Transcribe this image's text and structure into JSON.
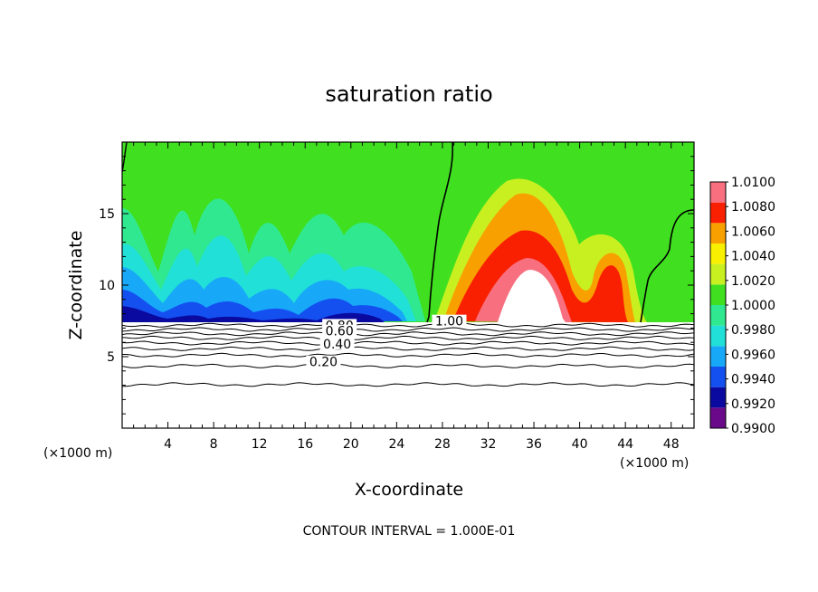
{
  "chart_data": {
    "type": "heatmap",
    "title": "saturation ratio",
    "xlabel": "X-coordinate",
    "ylabel": "Z-coordinate",
    "x_unit_left": "(×1000 m)",
    "x_unit_right": "(×1000 m)",
    "xlim": [
      0,
      50
    ],
    "ylim": [
      0,
      20
    ],
    "x_ticks": [
      "4",
      "8",
      "12",
      "16",
      "20",
      "24",
      "28",
      "32",
      "36",
      "40",
      "44",
      "48"
    ],
    "x_tick_values": [
      4,
      8,
      12,
      16,
      20,
      24,
      28,
      32,
      36,
      40,
      44,
      48
    ],
    "y_ticks": [
      "5",
      "10",
      "15"
    ],
    "y_tick_values": [
      5,
      10,
      15
    ],
    "footer": "CONTOUR INTERVAL = 1.000E-01",
    "colorbar": {
      "labels": [
        "1.0100",
        "1.0080",
        "1.0060",
        "1.0040",
        "1.0020",
        "1.0000",
        "0.9980",
        "0.9960",
        "0.9940",
        "0.9920",
        "0.9900"
      ],
      "values": [
        1.01,
        1.008,
        1.006,
        1.004,
        1.002,
        1.0,
        0.998,
        0.996,
        0.994,
        0.992,
        0.99
      ],
      "colors": [
        "#6a0a8a",
        "#0a0aa0",
        "#1450f0",
        "#18a8f8",
        "#20e0d8",
        "#30e890",
        "#40e020",
        "#c8f020",
        "#f8f000",
        "#f8a000",
        "#f82000",
        "#f87080"
      ]
    },
    "contour_labels": [
      {
        "text": "0.80",
        "x": 19.0,
        "y": 7.0
      },
      {
        "text": "0.60",
        "x": 19.0,
        "y": 6.6
      },
      {
        "text": "0.40",
        "x": 18.8,
        "y": 5.7
      },
      {
        "text": "0.20",
        "x": 17.6,
        "y": 4.45
      },
      {
        "text": "1.00",
        "x": 28.6,
        "y": 7.3
      }
    ],
    "contour_levels": [
      {
        "level": 0.9,
        "z": 7.2
      },
      {
        "level": 0.8,
        "z": 6.9
      },
      {
        "level": 0.7,
        "z": 6.6
      },
      {
        "level": 0.6,
        "z": 6.3
      },
      {
        "level": 0.5,
        "z": 5.95
      },
      {
        "level": 0.4,
        "z": 5.55
      },
      {
        "level": 0.3,
        "z": 5.1
      },
      {
        "level": 0.2,
        "z": 4.35
      },
      {
        "level": 0.1,
        "z": 3.05
      }
    ]
  }
}
